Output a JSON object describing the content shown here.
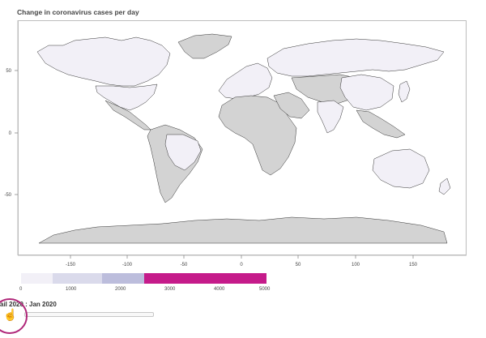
{
  "title": "Change in coronavirus cases per day",
  "map": {
    "x_ticks": [
      "-150",
      "-100",
      "-50",
      "0",
      "50",
      "100",
      "150"
    ],
    "y_ticks": [
      "50",
      "0",
      "-50"
    ],
    "colors": {
      "no_data": "#d3d3d3",
      "bin_0_1000": "#f2f0f7",
      "bin_1000_2000": "#dadaeb",
      "bin_2000_3000": "#bcbddc",
      "bin_3000_4000": "#c51b8a",
      "bin_4000_5000": "#c51b8a"
    }
  },
  "legend": {
    "ticks": [
      "0",
      "1000",
      "2000",
      "3000",
      "4000",
      "5000"
    ]
  },
  "slider": {
    "label": "ail 2020 : Jan 2020"
  },
  "icons": {
    "cursor": "hand-pointer-icon"
  }
}
